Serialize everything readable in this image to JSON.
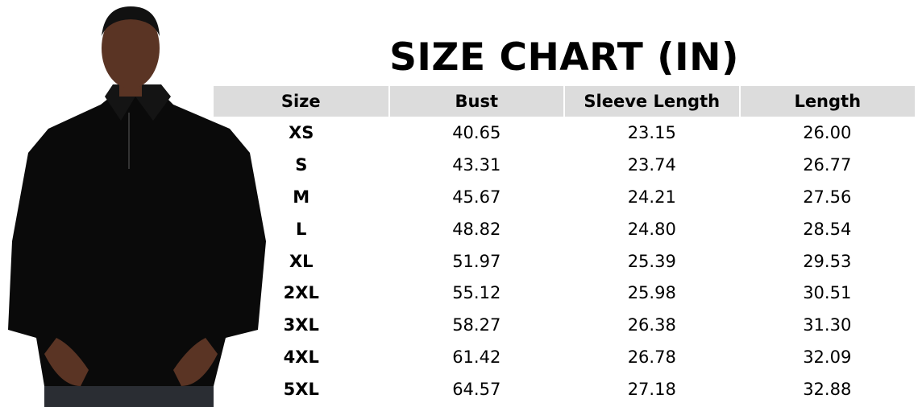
{
  "title": "SIZE CHART (IN)",
  "headers": [
    "Size",
    "Bust",
    "Sleeve Length",
    "Length"
  ],
  "rows": [
    [
      "XS",
      "40.65",
      "23.15",
      "26.00"
    ],
    [
      "S",
      "43.31",
      "23.74",
      "26.77"
    ],
    [
      "M",
      "45.67",
      "24.21",
      "27.56"
    ],
    [
      "L",
      "48.82",
      "24.80",
      "28.54"
    ],
    [
      "XL",
      "51.97",
      "25.39",
      "29.53"
    ],
    [
      "2XL",
      "55.12",
      "25.98",
      "30.51"
    ],
    [
      "3XL",
      "58.27",
      "26.38",
      "31.30"
    ],
    [
      "4XL",
      "61.42",
      "26.78",
      "32.09"
    ],
    [
      "5XL",
      "64.57",
      "27.18",
      "32.88"
    ]
  ],
  "colors": {
    "header_bg": "#dcdcdc",
    "sweater": "#0a0a0a",
    "skin": "#5a3424"
  }
}
